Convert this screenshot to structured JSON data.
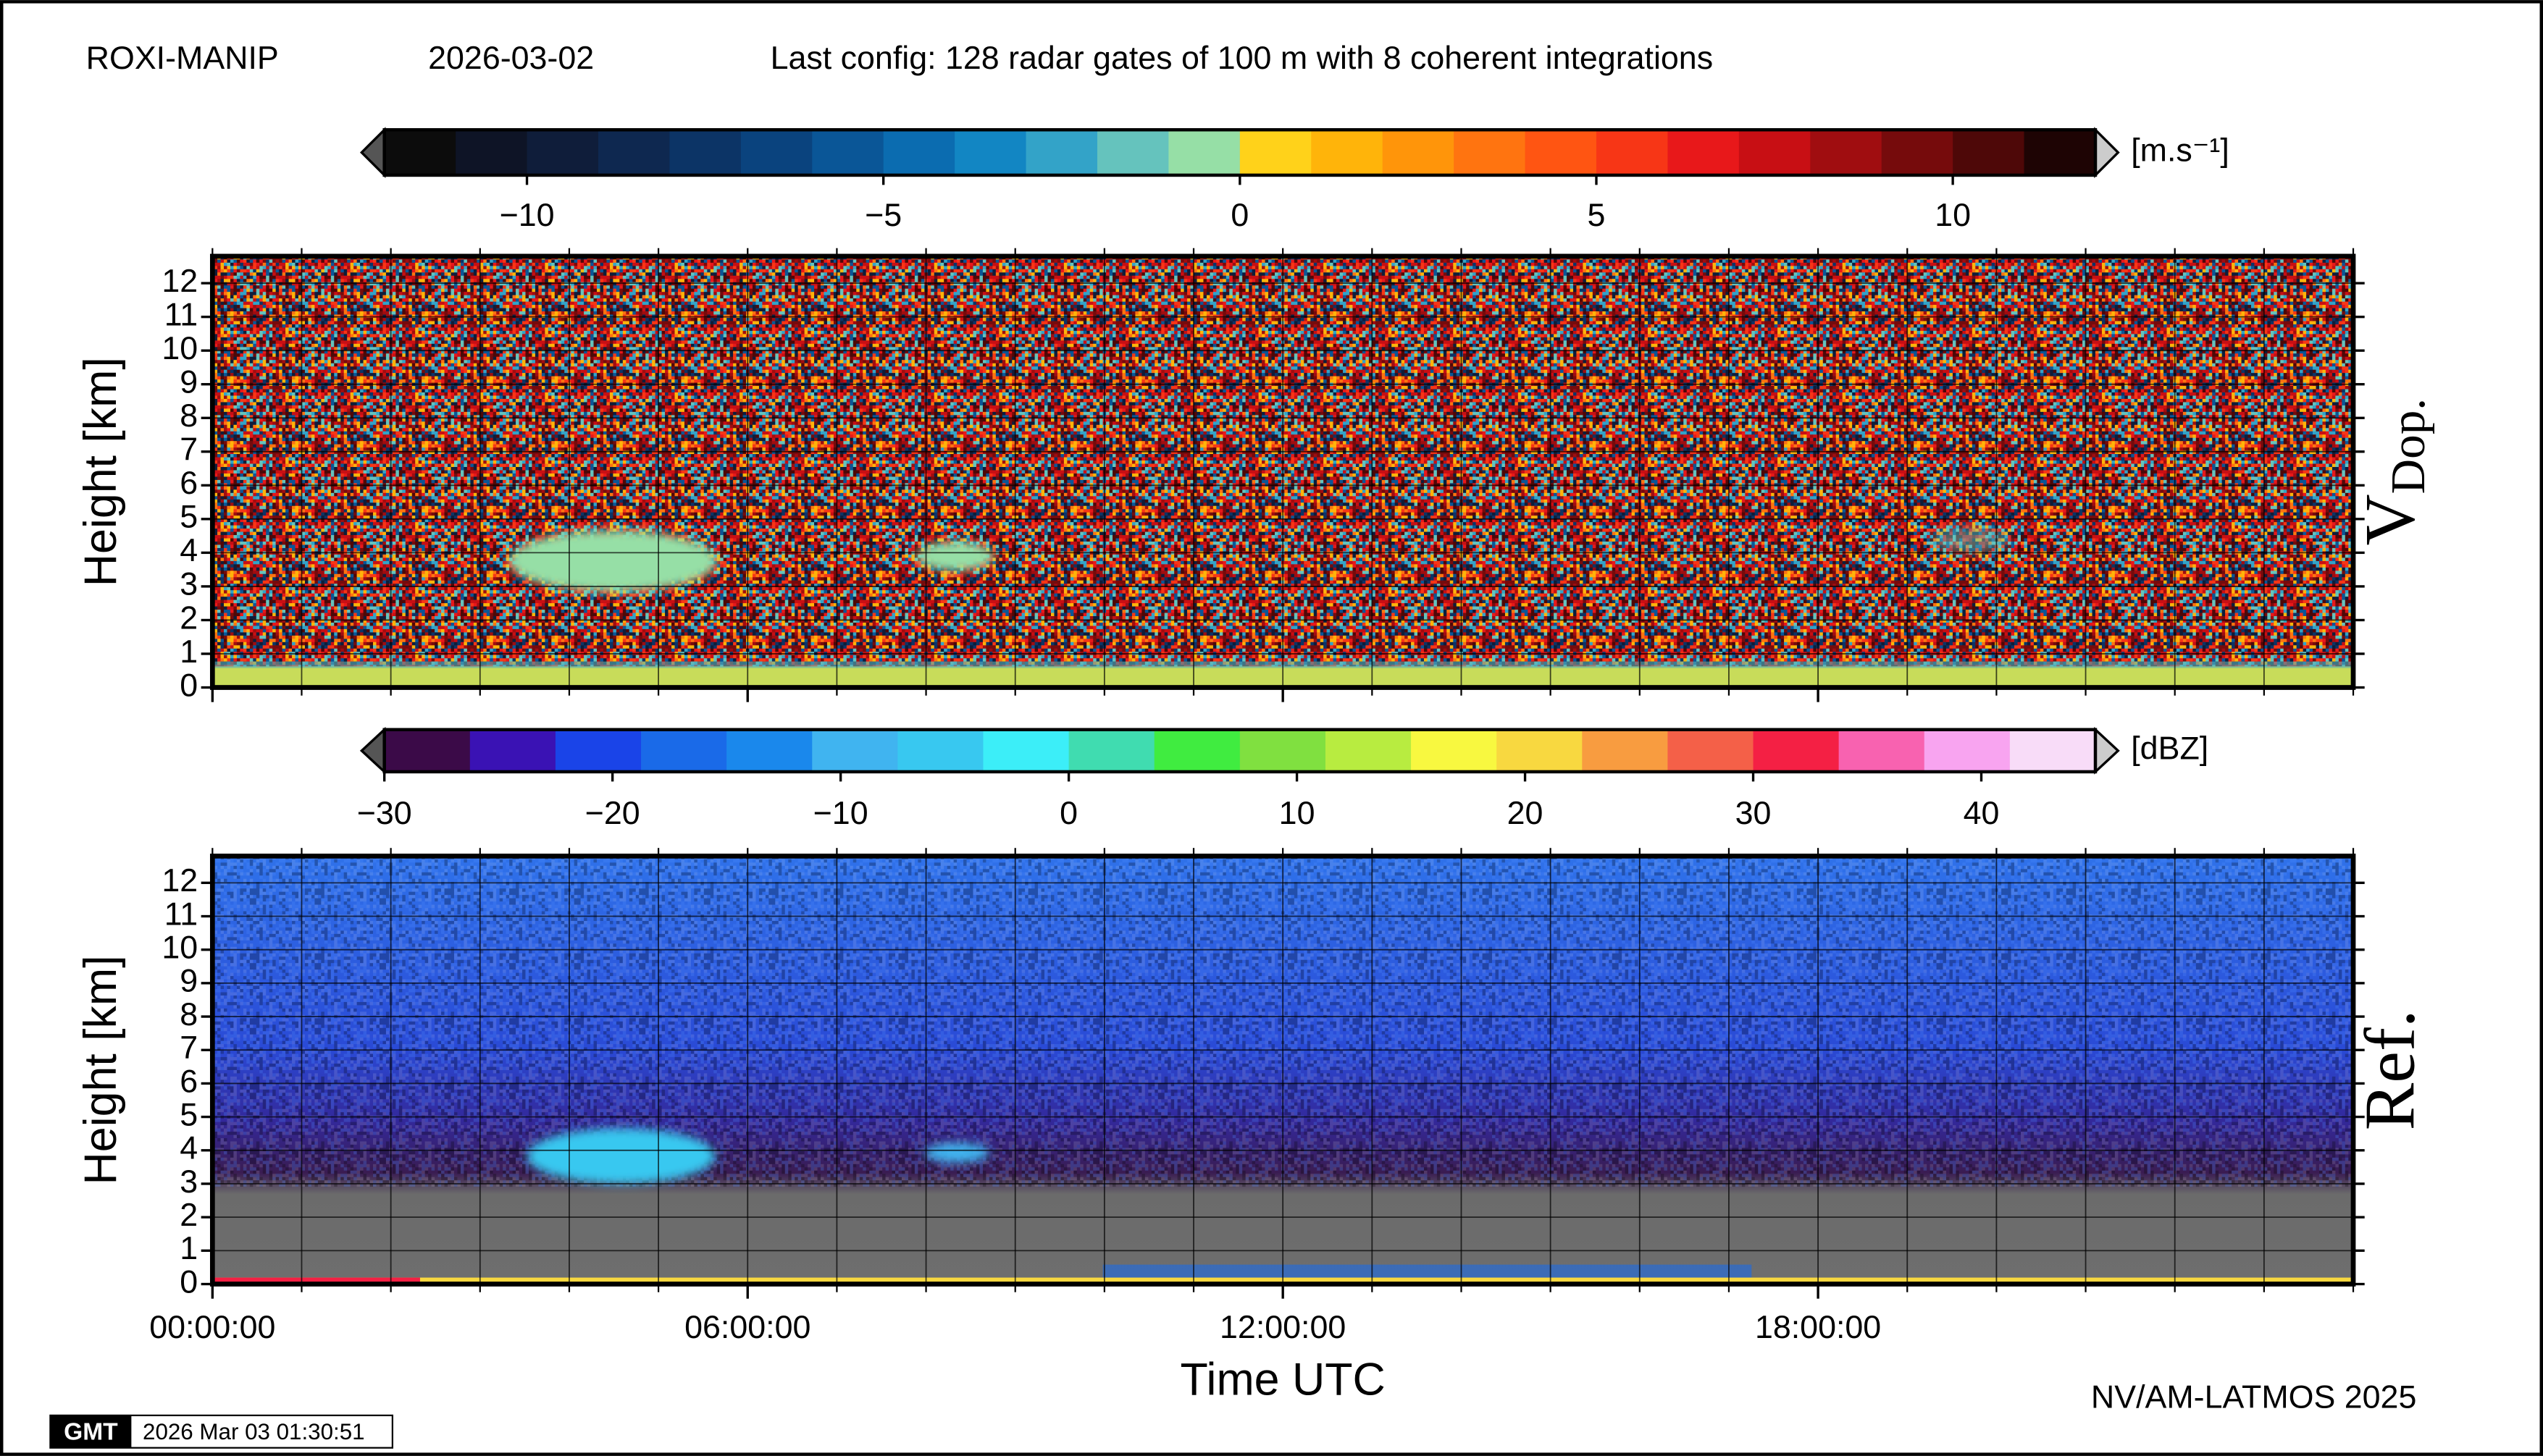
{
  "header": {
    "station": "ROXI-MANIP",
    "date": "2026-03-02",
    "config": "Last config: 128 radar gates of 100 m with 8 coherent integrations"
  },
  "colorbars": [
    {
      "unit": "[m.s⁻¹]",
      "lim": [
        -12,
        12
      ],
      "ticks": [
        {
          "value": -10,
          "label": "−10"
        },
        {
          "value": -5,
          "label": "−5"
        },
        0,
        5,
        10
      ],
      "colors": [
        "#0c0c0c",
        "#0e1426",
        "#0f1d3a",
        "#0e2850",
        "#0c3466",
        "#0a437e",
        "#0a5697",
        "#0b6cb0",
        "#1286c3",
        "#33a3c8",
        "#65c3bd",
        "#96dfa6",
        "#ffd21a",
        "#ffb40a",
        "#ff950a",
        "#ff7410",
        "#ff5512",
        "#f73616",
        "#e8181a",
        "#c80f14",
        "#a00d10",
        "#760b0c",
        "#4e0808",
        "#1e0404"
      ]
    },
    {
      "unit": "[dBZ]",
      "lim": [
        -30,
        45
      ],
      "ticks": [
        {
          "value": -30,
          "label": "−30"
        },
        {
          "value": -20,
          "label": "−20"
        },
        {
          "value": -10,
          "label": "−10"
        },
        0,
        10,
        20,
        30,
        40
      ],
      "colors": [
        "#3b0a48",
        "#3a12b4",
        "#1a44e8",
        "#1a6ae8",
        "#1a88ec",
        "#40b4f0",
        "#38c8f0",
        "#3ceef8",
        "#40dcb0",
        "#40ec40",
        "#80e040",
        "#b8ec40",
        "#f8f840",
        "#f8d840",
        "#f89c40",
        "#f46048",
        "#f42044",
        "#f862b0",
        "#f8a4f0",
        "#f8dcf8"
      ]
    }
  ],
  "panels": [
    {
      "label": "V",
      "label_sub": "Dop.",
      "ylabel": "Height [km]",
      "ylim": [
        0,
        12.8
      ],
      "yticks": [
        0,
        1,
        2,
        3,
        4,
        5,
        6,
        7,
        8,
        9,
        10,
        11,
        12
      ]
    },
    {
      "label": "Ref.",
      "ylabel": "Height [km]",
      "ylim": [
        0,
        12.8
      ],
      "yticks": [
        0,
        1,
        2,
        3,
        4,
        5,
        6,
        7,
        8,
        9,
        10,
        11,
        12
      ]
    }
  ],
  "xaxis": {
    "label": "Time UTC",
    "xlim": [
      0,
      24
    ],
    "xticks": [
      {
        "value": 0,
        "label": "00:00:00"
      },
      {
        "value": 6,
        "label": "06:00:00"
      },
      {
        "value": 12,
        "label": "12:00:00"
      },
      {
        "value": 18,
        "label": "18:00:00"
      }
    ]
  },
  "footer": {
    "credit": "NV/AM-LATMOS 2025",
    "logo": "GMT",
    "timestamp": "2026 Mar 03 01:30:51"
  }
}
